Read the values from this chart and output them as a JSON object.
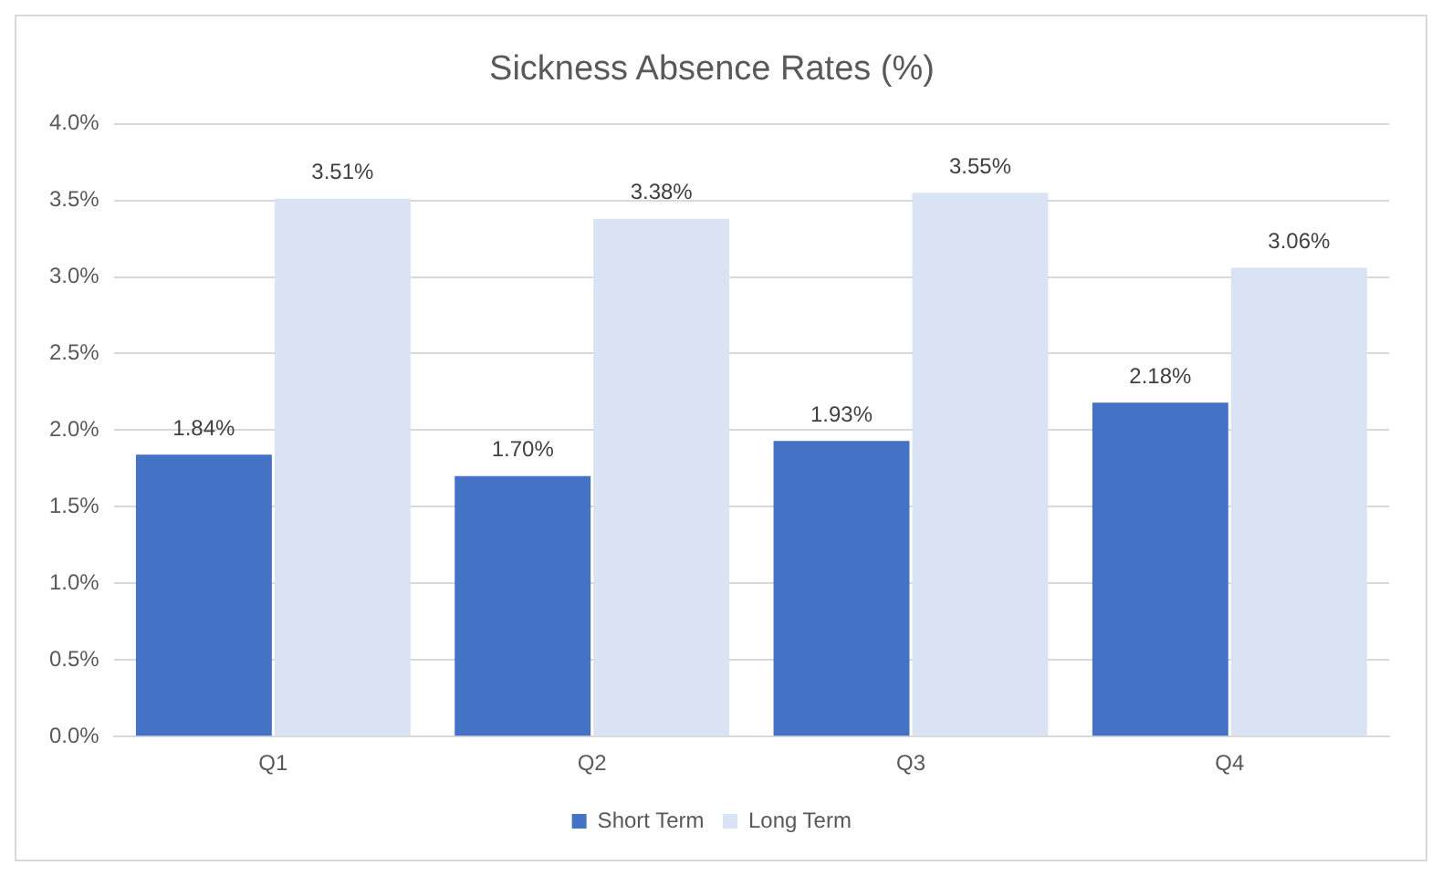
{
  "chart_data": {
    "type": "bar",
    "title": "Sickness Absence Rates (%)",
    "categories": [
      "Q1",
      "Q2",
      "Q3",
      "Q4"
    ],
    "series": [
      {
        "name": "Short Term",
        "color": "#4472c4",
        "values": [
          1.84,
          1.7,
          1.93,
          2.18
        ],
        "value_labels": [
          "1.84%",
          "1.70%",
          "1.93%",
          "2.18%"
        ]
      },
      {
        "name": "Long Term",
        "color": "#dae3f3",
        "values": [
          3.51,
          3.38,
          3.55,
          3.06
        ],
        "value_labels": [
          "3.51%",
          "3.38%",
          "3.55%",
          "3.06%"
        ]
      }
    ],
    "ylim": [
      0,
      4
    ],
    "yticks": [
      {
        "value": 0,
        "label": "0.0%"
      },
      {
        "value": 0.5,
        "label": "0.5%"
      },
      {
        "value": 1,
        "label": "1.0%"
      },
      {
        "value": 1.5,
        "label": "1.5%"
      },
      {
        "value": 2,
        "label": "2.0%"
      },
      {
        "value": 2.5,
        "label": "2.5%"
      },
      {
        "value": 3,
        "label": "3.0%"
      },
      {
        "value": 3.5,
        "label": "3.5%"
      },
      {
        "value": 4,
        "label": "4.0%"
      }
    ],
    "grid": "y",
    "legend": "bottom"
  }
}
